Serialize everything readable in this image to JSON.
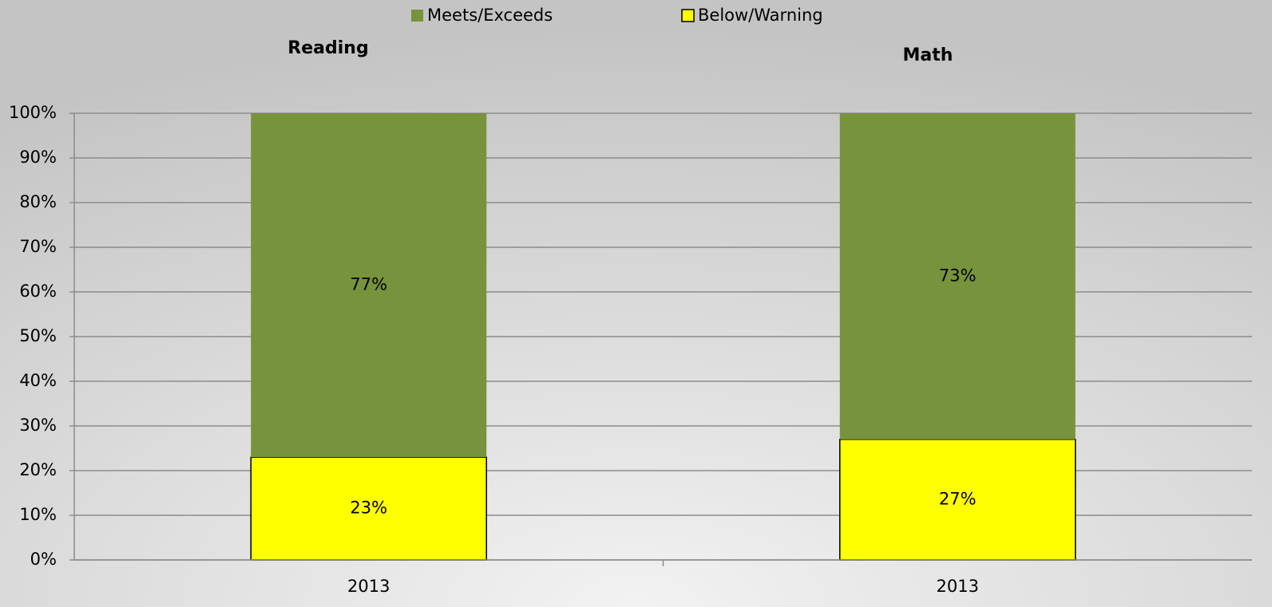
{
  "chart_data": {
    "type": "stacked_bar",
    "annotations": [
      {
        "text": "Reading"
      },
      {
        "text": "Math"
      }
    ],
    "categories": [
      "2013",
      "2013"
    ],
    "series": [
      {
        "name": "Meets/Exceeds",
        "color": "#77933c",
        "values": [
          77,
          73
        ],
        "value_labels": [
          "77%",
          "73%"
        ]
      },
      {
        "name": "Below/Warning",
        "color": "#ffff00",
        "values": [
          23,
          27
        ],
        "value_labels": [
          "23%",
          "27%"
        ]
      }
    ],
    "ylim": [
      0,
      100
    ],
    "yticks": [
      {
        "value": 0,
        "label": "0%"
      },
      {
        "value": 10,
        "label": "10%"
      },
      {
        "value": 20,
        "label": "20%"
      },
      {
        "value": 30,
        "label": "30%"
      },
      {
        "value": 40,
        "label": "40%"
      },
      {
        "value": 50,
        "label": "50%"
      },
      {
        "value": 60,
        "label": "60%"
      },
      {
        "value": 70,
        "label": "70%"
      },
      {
        "value": 80,
        "label": "80%"
      },
      {
        "value": 90,
        "label": "90%"
      },
      {
        "value": 100,
        "label": "100%"
      }
    ],
    "grid": true,
    "legend": "top"
  }
}
